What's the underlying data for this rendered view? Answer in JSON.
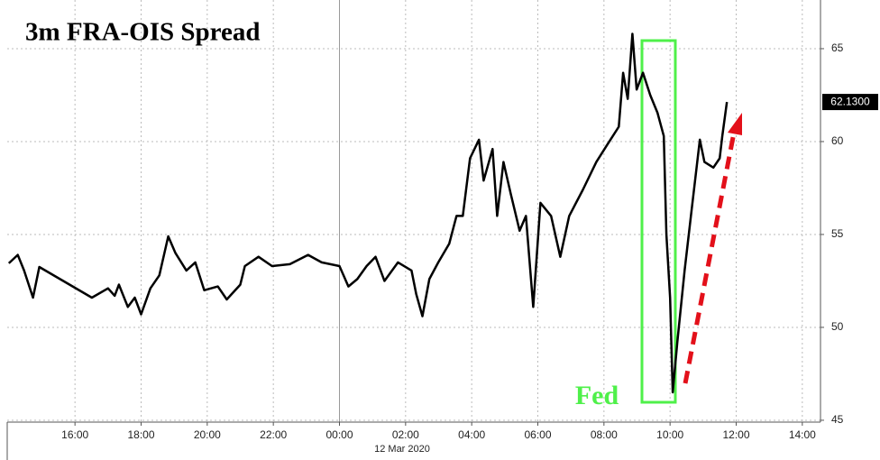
{
  "chart_data": {
    "type": "line",
    "title": "3m FRA-OIS Spread",
    "date_label": "12 Mar 2020",
    "annotation": "Fed",
    "x": [
      -10.0,
      -9.73,
      -9.54,
      -9.27,
      -9.08,
      -7.49,
      -7.0,
      -6.8,
      -6.67,
      -6.4,
      -6.19,
      -6.0,
      -5.72,
      -5.45,
      -5.18,
      -4.96,
      -4.63,
      -4.36,
      -4.09,
      -3.68,
      -3.41,
      -3.0,
      -2.86,
      -2.45,
      -2.04,
      -1.5,
      -0.95,
      -0.54,
      0.0,
      0.27,
      0.54,
      0.82,
      1.09,
      1.36,
      1.77,
      2.18,
      2.32,
      2.51,
      2.72,
      2.99,
      3.32,
      3.54,
      3.73,
      3.95,
      4.22,
      4.36,
      4.63,
      4.77,
      4.96,
      5.18,
      5.45,
      5.64,
      5.86,
      6.08,
      6.4,
      6.68,
      6.95,
      7.36,
      7.77,
      8.09,
      8.45,
      8.58,
      8.72,
      8.86,
      8.99,
      9.18,
      9.4,
      9.62,
      9.81,
      9.89,
      10.0,
      10.08,
      10.22,
      10.44,
      10.63,
      10.9,
      11.04,
      11.31,
      11.5,
      11.58,
      11.72
    ],
    "series": [
      {
        "name": "3m FRA-OIS Spread",
        "color": "#000000",
        "values": [
          53.45,
          53.9,
          53.06,
          51.6,
          53.25,
          51.6,
          52.1,
          51.7,
          52.3,
          51.1,
          51.6,
          50.7,
          52.1,
          52.8,
          54.9,
          54.0,
          53.06,
          53.5,
          52.0,
          52.2,
          51.5,
          52.3,
          53.3,
          53.8,
          53.3,
          53.4,
          53.9,
          53.5,
          53.3,
          52.2,
          52.6,
          53.3,
          53.8,
          52.5,
          53.5,
          53.06,
          51.8,
          50.6,
          52.6,
          53.5,
          54.5,
          56.0,
          56.0,
          59.1,
          60.1,
          57.9,
          59.6,
          56.0,
          58.9,
          57.2,
          55.2,
          56.0,
          51.1,
          56.7,
          56.0,
          53.8,
          56.0,
          57.4,
          58.9,
          59.8,
          60.8,
          63.7,
          62.3,
          65.8,
          62.8,
          63.7,
          62.5,
          61.55,
          60.3,
          55.0,
          51.6,
          46.5,
          49.2,
          53.06,
          56.0,
          60.1,
          58.9,
          58.6,
          59.1,
          60.3,
          62.13
        ]
      }
    ],
    "last_value": {
      "value": 62.13,
      "label": "62.1300"
    },
    "xlim": [
      -10.05,
      14.55
    ],
    "xticks": [
      {
        "value": -8,
        "label": "16:00"
      },
      {
        "value": -6,
        "label": "18:00"
      },
      {
        "value": -4,
        "label": "20:00"
      },
      {
        "value": -2,
        "label": "22:00"
      },
      {
        "value": 0,
        "label": "00:00"
      },
      {
        "value": 2,
        "label": "02:00"
      },
      {
        "value": 4,
        "label": "04:00"
      },
      {
        "value": 6,
        "label": "06:00"
      },
      {
        "value": 8,
        "label": "08:00"
      },
      {
        "value": 10,
        "label": "10:00"
      },
      {
        "value": 12,
        "label": "12:00"
      },
      {
        "value": 14,
        "label": "14:00"
      }
    ],
    "ylim": [
      44.9,
      67.62
    ],
    "yticks": [
      45,
      50,
      55,
      60,
      65
    ],
    "grid": true
  }
}
